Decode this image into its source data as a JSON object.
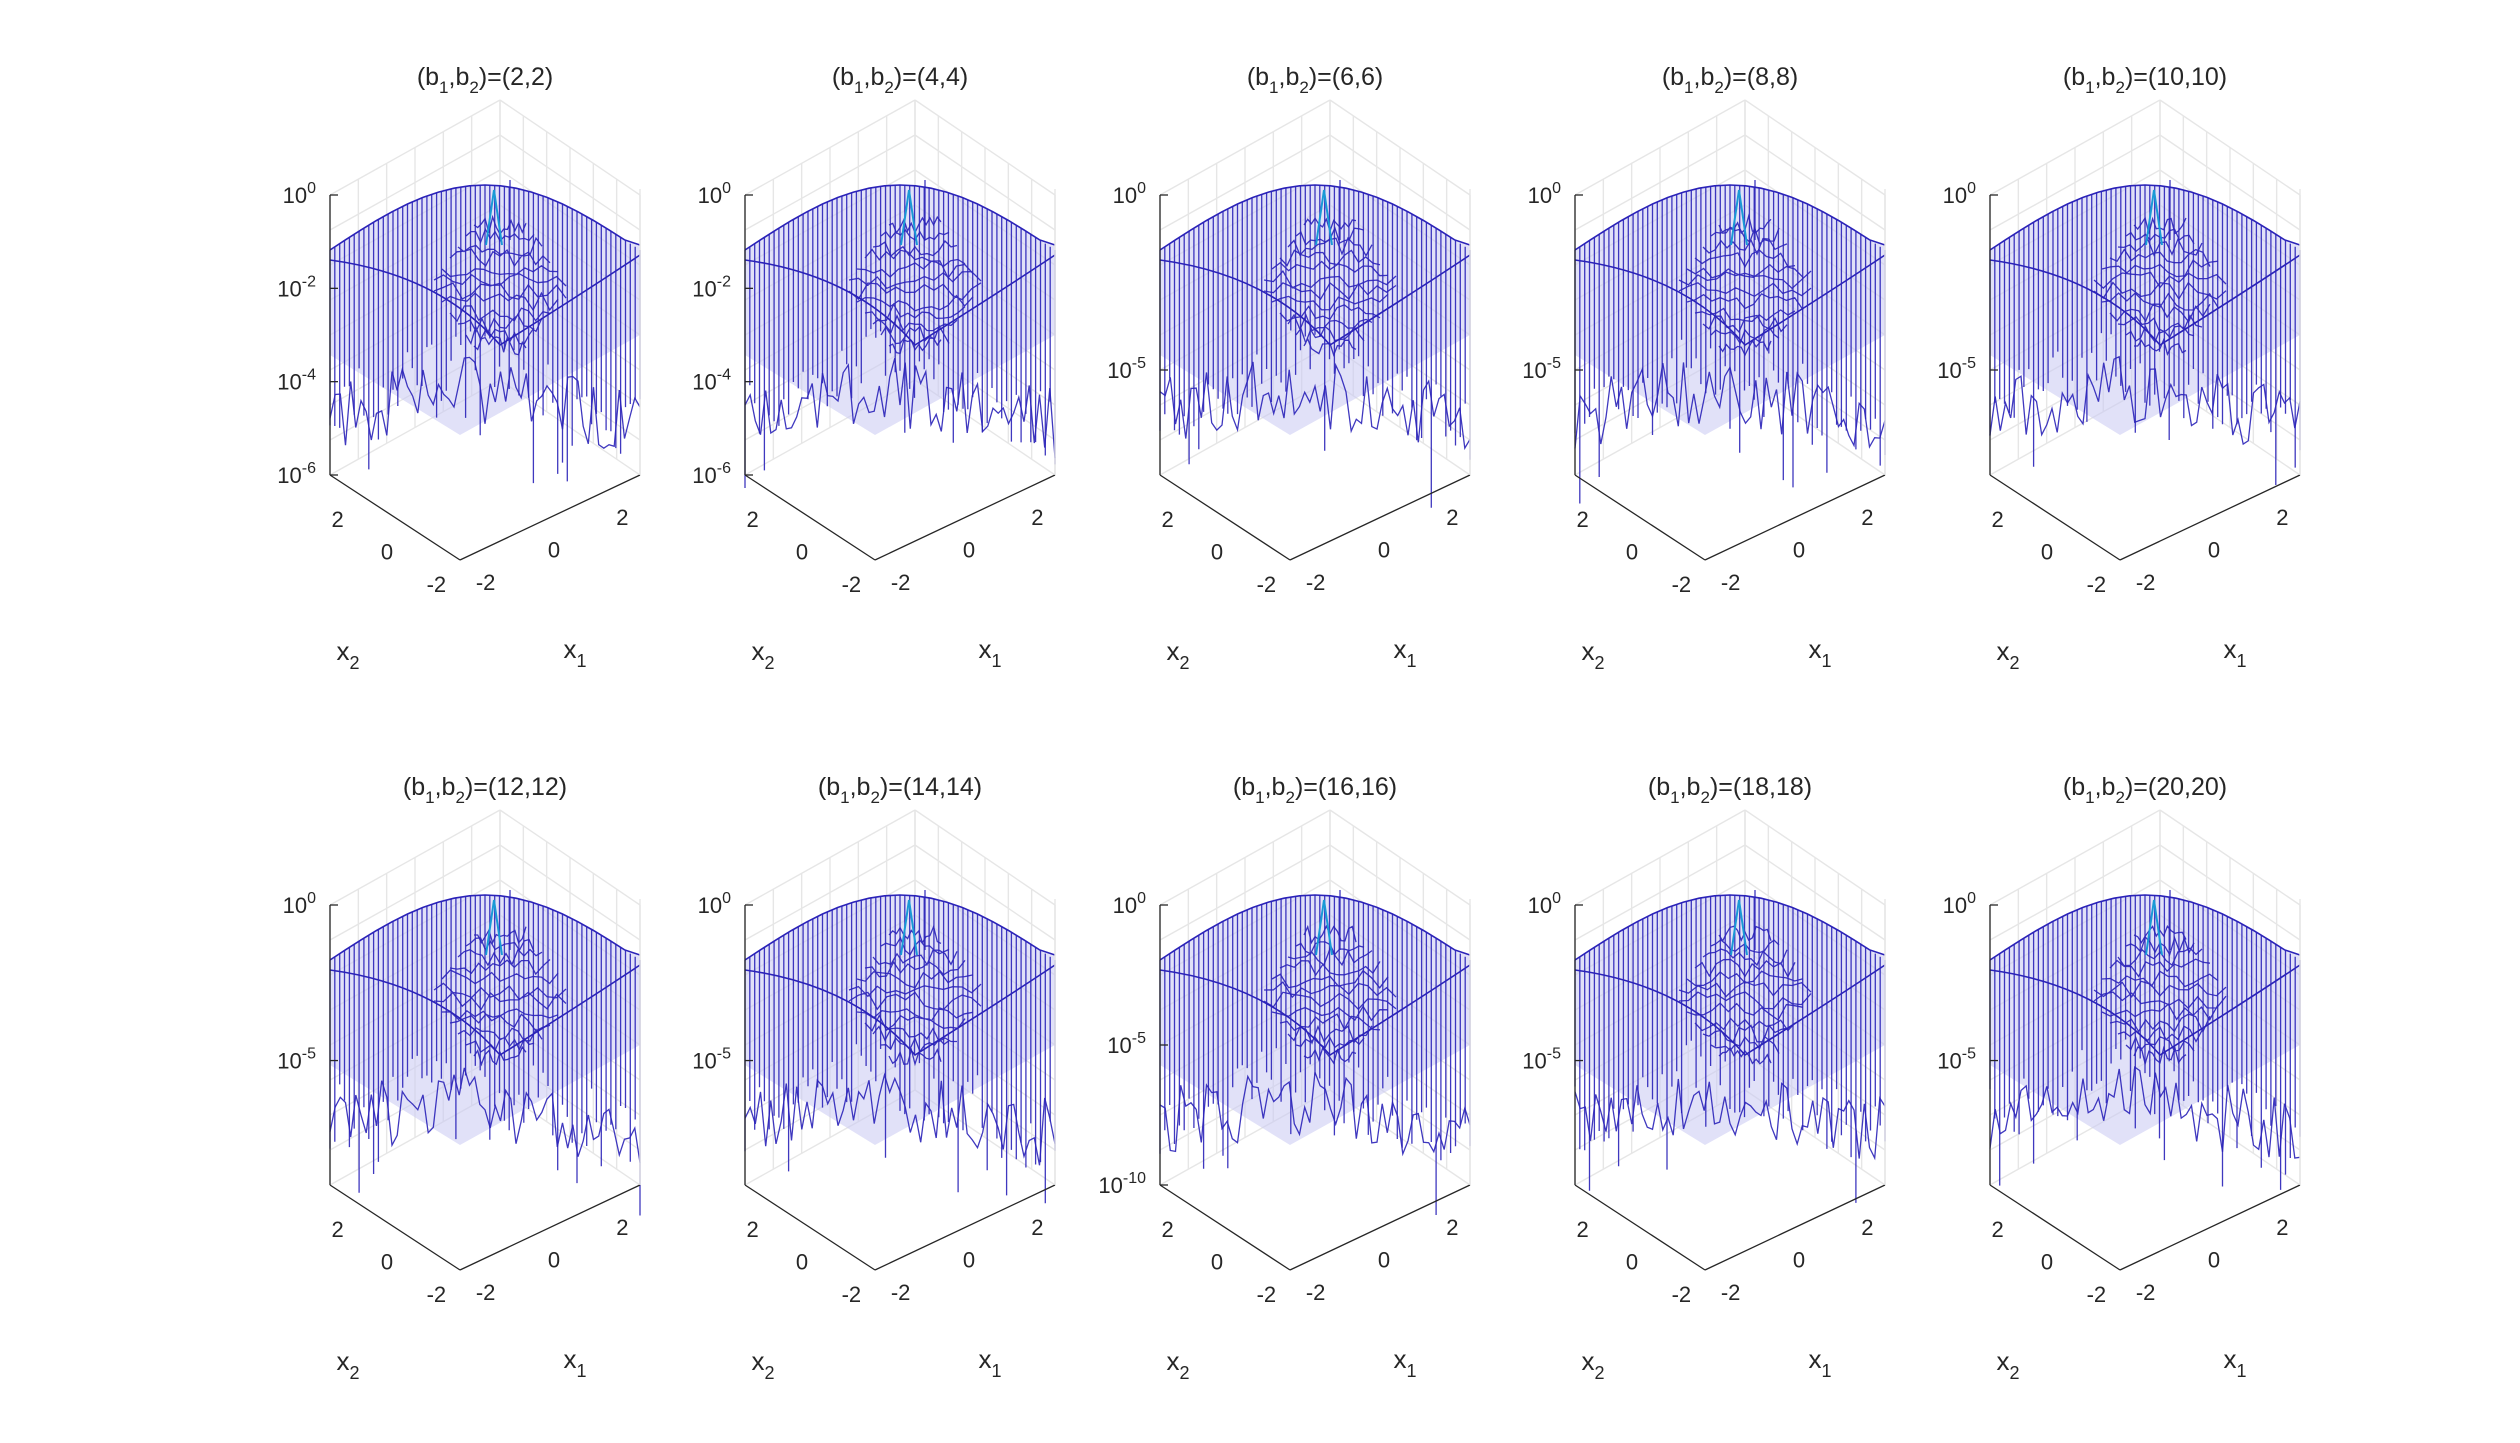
{
  "figure": {
    "background": "#ffffff",
    "mesh_color": "#2a22b8",
    "face_color": "#c9c8f2",
    "peak_color": "#1a9ad6"
  },
  "chart_data": [
    {
      "type": "surface",
      "title_main": "(b",
      "title_sub1": "1",
      "title_mid": ",b",
      "title_sub2": "2",
      "title_end": ")=(2,2)",
      "b1": 2,
      "b2": 2,
      "zscale": "log",
      "zlim_exp": [
        -6,
        0
      ],
      "zticks": [
        {
          "base": "10",
          "exp": "0",
          "e": 0
        },
        {
          "base": "10",
          "exp": "-2",
          "e": -2
        },
        {
          "base": "10",
          "exp": "-4",
          "e": -4
        },
        {
          "base": "10",
          "exp": "-6",
          "e": -6
        }
      ],
      "xticks": [
        "-2",
        "0",
        "2"
      ],
      "yticks": [
        "-2",
        "0",
        "2"
      ],
      "xlabel": "x",
      "xlabel_sub": "1",
      "ylabel": "x",
      "ylabel_sub": "2"
    },
    {
      "type": "surface",
      "title_main": "(b",
      "title_sub1": "1",
      "title_mid": ",b",
      "title_sub2": "2",
      "title_end": ")=(4,4)",
      "b1": 4,
      "b2": 4,
      "zscale": "log",
      "zlim_exp": [
        -6,
        0
      ],
      "zticks": [
        {
          "base": "10",
          "exp": "0",
          "e": 0
        },
        {
          "base": "10",
          "exp": "-2",
          "e": -2
        },
        {
          "base": "10",
          "exp": "-4",
          "e": -4
        },
        {
          "base": "10",
          "exp": "-6",
          "e": -6
        }
      ],
      "xticks": [
        "-2",
        "0",
        "2"
      ],
      "yticks": [
        "-2",
        "0",
        "2"
      ],
      "xlabel": "x",
      "xlabel_sub": "1",
      "ylabel": "x",
      "ylabel_sub": "2"
    },
    {
      "type": "surface",
      "title_main": "(b",
      "title_sub1": "1",
      "title_mid": ",b",
      "title_sub2": "2",
      "title_end": ")=(6,6)",
      "b1": 6,
      "b2": 6,
      "zscale": "log",
      "zlim_exp": [
        -8,
        0
      ],
      "zticks": [
        {
          "base": "10",
          "exp": "0",
          "e": 0
        },
        {
          "base": "10",
          "exp": "-5",
          "e": -5
        }
      ],
      "xticks": [
        "-2",
        "0",
        "2"
      ],
      "yticks": [
        "-2",
        "0",
        "2"
      ],
      "xlabel": "x",
      "xlabel_sub": "1",
      "ylabel": "x",
      "ylabel_sub": "2"
    },
    {
      "type": "surface",
      "title_main": "(b",
      "title_sub1": "1",
      "title_mid": ",b",
      "title_sub2": "2",
      "title_end": ")=(8,8)",
      "b1": 8,
      "b2": 8,
      "zscale": "log",
      "zlim_exp": [
        -8,
        0
      ],
      "zticks": [
        {
          "base": "10",
          "exp": "0",
          "e": 0
        },
        {
          "base": "10",
          "exp": "-5",
          "e": -5
        }
      ],
      "xticks": [
        "-2",
        "0",
        "2"
      ],
      "yticks": [
        "-2",
        "0",
        "2"
      ],
      "xlabel": "x",
      "xlabel_sub": "1",
      "ylabel": "x",
      "ylabel_sub": "2"
    },
    {
      "type": "surface",
      "title_main": "(b",
      "title_sub1": "1",
      "title_mid": ",b",
      "title_sub2": "2",
      "title_end": ")=(10,10)",
      "b1": 10,
      "b2": 10,
      "zscale": "log",
      "zlim_exp": [
        -8,
        0
      ],
      "zticks": [
        {
          "base": "10",
          "exp": "0",
          "e": 0
        },
        {
          "base": "10",
          "exp": "-5",
          "e": -5
        }
      ],
      "xticks": [
        "-2",
        "0",
        "2"
      ],
      "yticks": [
        "-2",
        "0",
        "2"
      ],
      "xlabel": "x",
      "xlabel_sub": "1",
      "ylabel": "x",
      "ylabel_sub": "2"
    },
    {
      "type": "surface",
      "title_main": "(b",
      "title_sub1": "1",
      "title_mid": ",b",
      "title_sub2": "2",
      "title_end": ")=(12,12)",
      "b1": 12,
      "b2": 12,
      "zscale": "log",
      "zlim_exp": [
        -9,
        0
      ],
      "zticks": [
        {
          "base": "10",
          "exp": "0",
          "e": 0
        },
        {
          "base": "10",
          "exp": "-5",
          "e": -5
        }
      ],
      "xticks": [
        "-2",
        "0",
        "2"
      ],
      "yticks": [
        "-2",
        "0",
        "2"
      ],
      "xlabel": "x",
      "xlabel_sub": "1",
      "ylabel": "x",
      "ylabel_sub": "2"
    },
    {
      "type": "surface",
      "title_main": "(b",
      "title_sub1": "1",
      "title_mid": ",b",
      "title_sub2": "2",
      "title_end": ")=(14,14)",
      "b1": 14,
      "b2": 14,
      "zscale": "log",
      "zlim_exp": [
        -9,
        0
      ],
      "zticks": [
        {
          "base": "10",
          "exp": "0",
          "e": 0
        },
        {
          "base": "10",
          "exp": "-5",
          "e": -5
        }
      ],
      "xticks": [
        "-2",
        "0",
        "2"
      ],
      "yticks": [
        "-2",
        "0",
        "2"
      ],
      "xlabel": "x",
      "xlabel_sub": "1",
      "ylabel": "x",
      "ylabel_sub": "2"
    },
    {
      "type": "surface",
      "title_main": "(b",
      "title_sub1": "1",
      "title_mid": ",b",
      "title_sub2": "2",
      "title_end": ")=(16,16)",
      "b1": 16,
      "b2": 16,
      "zscale": "log",
      "zlim_exp": [
        -10,
        0
      ],
      "zticks": [
        {
          "base": "10",
          "exp": "0",
          "e": 0
        },
        {
          "base": "10",
          "exp": "-5",
          "e": -5
        },
        {
          "base": "10",
          "exp": "-10",
          "e": -10
        }
      ],
      "xticks": [
        "-2",
        "0",
        "2"
      ],
      "yticks": [
        "-2",
        "0",
        "2"
      ],
      "xlabel": "x",
      "xlabel_sub": "1",
      "ylabel": "x",
      "ylabel_sub": "2"
    },
    {
      "type": "surface",
      "title_main": "(b",
      "title_sub1": "1",
      "title_mid": ",b",
      "title_sub2": "2",
      "title_end": ")=(18,18)",
      "b1": 18,
      "b2": 18,
      "zscale": "log",
      "zlim_exp": [
        -9,
        0
      ],
      "zticks": [
        {
          "base": "10",
          "exp": "0",
          "e": 0
        },
        {
          "base": "10",
          "exp": "-5",
          "e": -5
        }
      ],
      "xticks": [
        "-2",
        "0",
        "2"
      ],
      "yticks": [
        "-2",
        "0",
        "2"
      ],
      "xlabel": "x",
      "xlabel_sub": "1",
      "ylabel": "x",
      "ylabel_sub": "2"
    },
    {
      "type": "surface",
      "title_main": "(b",
      "title_sub1": "1",
      "title_mid": ",b",
      "title_sub2": "2",
      "title_end": ")=(20,20)",
      "b1": 20,
      "b2": 20,
      "zscale": "log",
      "zlim_exp": [
        -9,
        0
      ],
      "zticks": [
        {
          "base": "10",
          "exp": "0",
          "e": 0
        },
        {
          "base": "10",
          "exp": "-5",
          "e": -5
        }
      ],
      "xticks": [
        "-2",
        "0",
        "2"
      ],
      "yticks": [
        "-2",
        "0",
        "2"
      ],
      "xlabel": "x",
      "xlabel_sub": "1",
      "ylabel": "x",
      "ylabel_sub": "2"
    }
  ]
}
